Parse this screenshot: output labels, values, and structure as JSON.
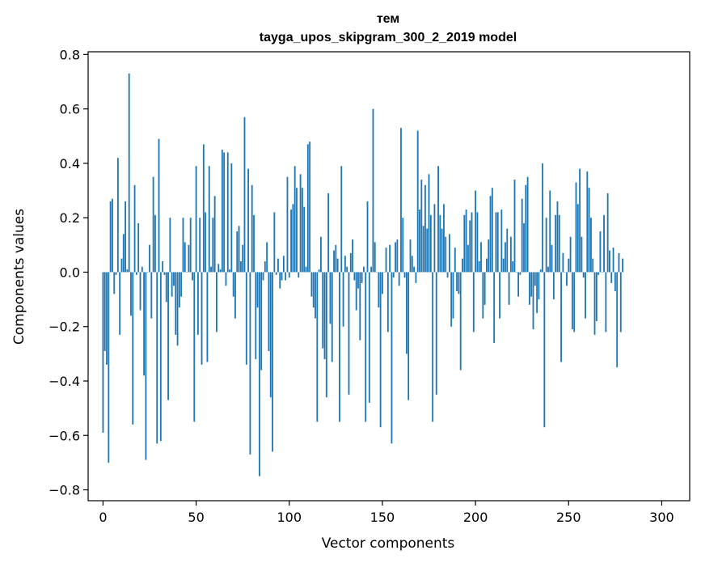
{
  "chart_data": {
    "type": "bar",
    "title_line1": "тем",
    "title_line2": "tayga_upos_skipgram_300_2_2019 model",
    "xlabel": "Vector components",
    "ylabel": "Components values",
    "xlim": [
      -8,
      315
    ],
    "ylim": [
      -0.84,
      0.81
    ],
    "xticks": [
      0,
      50,
      100,
      150,
      200,
      250,
      300
    ],
    "xtick_labels": [
      "0",
      "50",
      "100",
      "150",
      "200",
      "250",
      "300"
    ],
    "yticks": [
      -0.8,
      -0.6,
      -0.4,
      -0.2,
      0.0,
      0.2,
      0.4,
      0.6,
      0.8
    ],
    "ytick_labels": [
      "−0.8",
      "−0.6",
      "−0.4",
      "−0.2",
      "0.0",
      "0.2",
      "0.4",
      "0.6",
      "0.8"
    ],
    "bar_color": "#1f77b4",
    "values": [
      -0.59,
      -0.29,
      -0.34,
      -0.7,
      0.26,
      0.27,
      -0.08,
      -0.01,
      0.42,
      -0.23,
      0.05,
      0.14,
      0.26,
      0.01,
      0.73,
      -0.16,
      -0.56,
      0.32,
      -0.01,
      0.18,
      -0.14,
      0.02,
      -0.38,
      -0.69,
      0.0,
      0.1,
      -0.17,
      0.35,
      0.21,
      -0.63,
      0.49,
      -0.62,
      0.04,
      -0.01,
      -0.11,
      -0.47,
      0.2,
      -0.09,
      -0.05,
      -0.23,
      -0.27,
      -0.13,
      -0.09,
      0.2,
      0.11,
      0.0,
      0.1,
      0.2,
      -0.03,
      -0.55,
      0.39,
      -0.23,
      0.2,
      -0.34,
      0.47,
      0.22,
      -0.33,
      0.39,
      0.02,
      0.2,
      0.28,
      -0.22,
      0.03,
      0.01,
      0.45,
      0.44,
      -0.05,
      0.44,
      0.01,
      0.4,
      -0.09,
      -0.17,
      0.15,
      0.17,
      0.04,
      0.1,
      0.57,
      -0.34,
      0.38,
      -0.67,
      0.32,
      0.21,
      -0.32,
      -0.13,
      -0.75,
      -0.36,
      -0.03,
      0.04,
      0.11,
      -0.29,
      -0.46,
      -0.66,
      0.22,
      -0.01,
      0.05,
      -0.06,
      -0.03,
      0.06,
      -0.03,
      0.35,
      -0.02,
      0.23,
      0.25,
      0.39,
      0.31,
      -0.02,
      0.36,
      0.31,
      0.24,
      0.02,
      0.47,
      0.48,
      -0.09,
      -0.13,
      -0.17,
      -0.55,
      0.01,
      0.13,
      -0.28,
      -0.32,
      -0.46,
      0.29,
      -0.19,
      -0.33,
      0.08,
      0.1,
      0.05,
      -0.55,
      0.39,
      -0.2,
      0.06,
      0.02,
      -0.45,
      0.07,
      0.12,
      -0.03,
      -0.14,
      -0.06,
      -0.25,
      -0.04,
      0.02,
      -0.55,
      0.26,
      -0.48,
      0.02,
      0.6,
      0.11,
      0.0,
      -0.13,
      -0.57,
      -0.08,
      0.0,
      0.09,
      -0.22,
      0.1,
      -0.63,
      -0.02,
      0.11,
      0.12,
      -0.05,
      0.53,
      0.2,
      -0.02,
      -0.3,
      -0.47,
      0.12,
      0.06,
      0.02,
      -0.04,
      0.52,
      0.23,
      0.34,
      0.17,
      0.32,
      0.16,
      0.36,
      0.21,
      -0.55,
      0.25,
      -0.45,
      0.39,
      0.21,
      0.16,
      0.25,
      0.13,
      -0.02,
      0.14,
      -0.2,
      -0.17,
      0.09,
      -0.07,
      -0.08,
      -0.36,
      0.05,
      0.21,
      0.23,
      0.1,
      0.19,
      0.22,
      -0.22,
      0.3,
      0.22,
      0.04,
      0.11,
      -0.17,
      -0.12,
      0.05,
      0.12,
      0.28,
      0.31,
      -0.26,
      0.22,
      0.22,
      -0.17,
      0.23,
      0.05,
      0.11,
      0.16,
      -0.12,
      0.13,
      0.04,
      0.34,
      0.0,
      -0.09,
      -0.01,
      0.27,
      0.18,
      0.32,
      0.35,
      -0.12,
      -0.09,
      -0.21,
      -0.05,
      -0.15,
      -0.1,
      0.01,
      0.4,
      -0.57,
      0.2,
      0.02,
      0.3,
      0.1,
      -0.1,
      0.21,
      0.26,
      0.21,
      -0.33,
      0.07,
      0.0,
      -0.05,
      0.05,
      0.13,
      -0.21,
      -0.22,
      0.33,
      0.25,
      0.38,
      0.13,
      -0.02,
      -0.17,
      0.37,
      0.31,
      0.2,
      0.05,
      -0.23,
      -0.18,
      -0.01,
      0.15,
      0.0,
      0.21,
      -0.22,
      0.29,
      0.08,
      -0.04,
      0.09,
      -0.07,
      -0.35,
      0.07,
      -0.22,
      0.05
    ]
  }
}
